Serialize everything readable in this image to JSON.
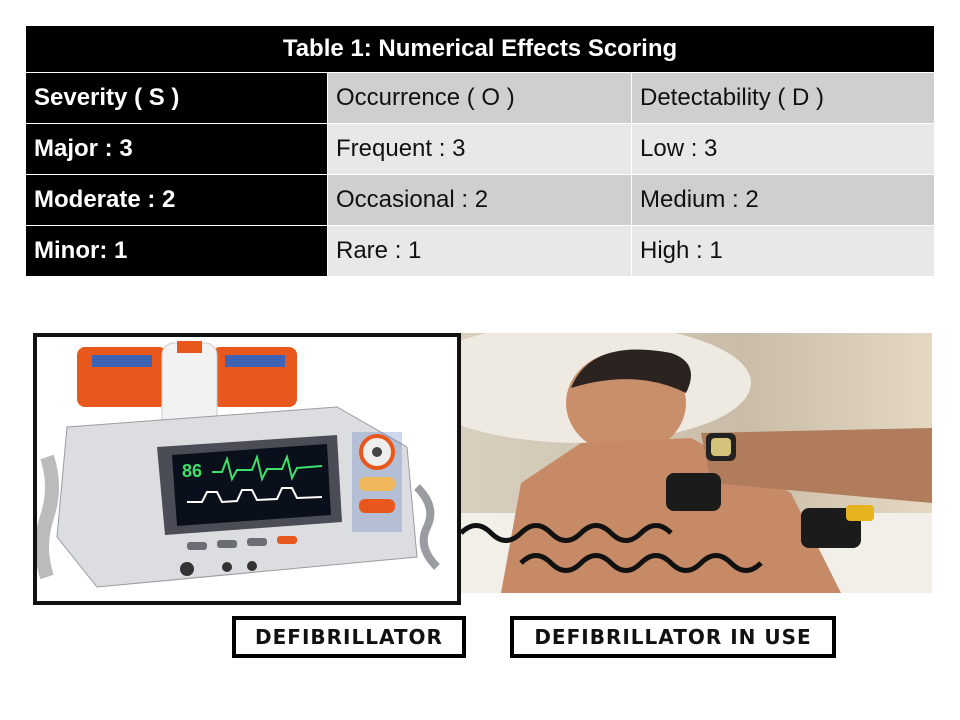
{
  "table": {
    "title": "Table 1: Numerical Effects Scoring",
    "header": [
      "Severity ( S )",
      "Occurrence ( O )",
      "Detectability ( D )"
    ],
    "rows": [
      [
        "Major : 3",
        "Frequent : 3",
        "Low : 3"
      ],
      [
        "Moderate : 2",
        "Occasional : 2",
        "Medium : 2"
      ],
      [
        "Minor: 1",
        "Rare : 1",
        "High : 1"
      ]
    ]
  },
  "monitor": {
    "heart_rate": "86"
  },
  "captions": {
    "left": "DEFIBRILLATOR",
    "right": "DEFIBRILLATOR IN USE"
  },
  "colors": {
    "header_black": "#000000",
    "row_dark": "#cfcfcf",
    "row_light": "#e8e8e8",
    "device_orange": "#e8581c",
    "device_body": "#dcdde0"
  }
}
